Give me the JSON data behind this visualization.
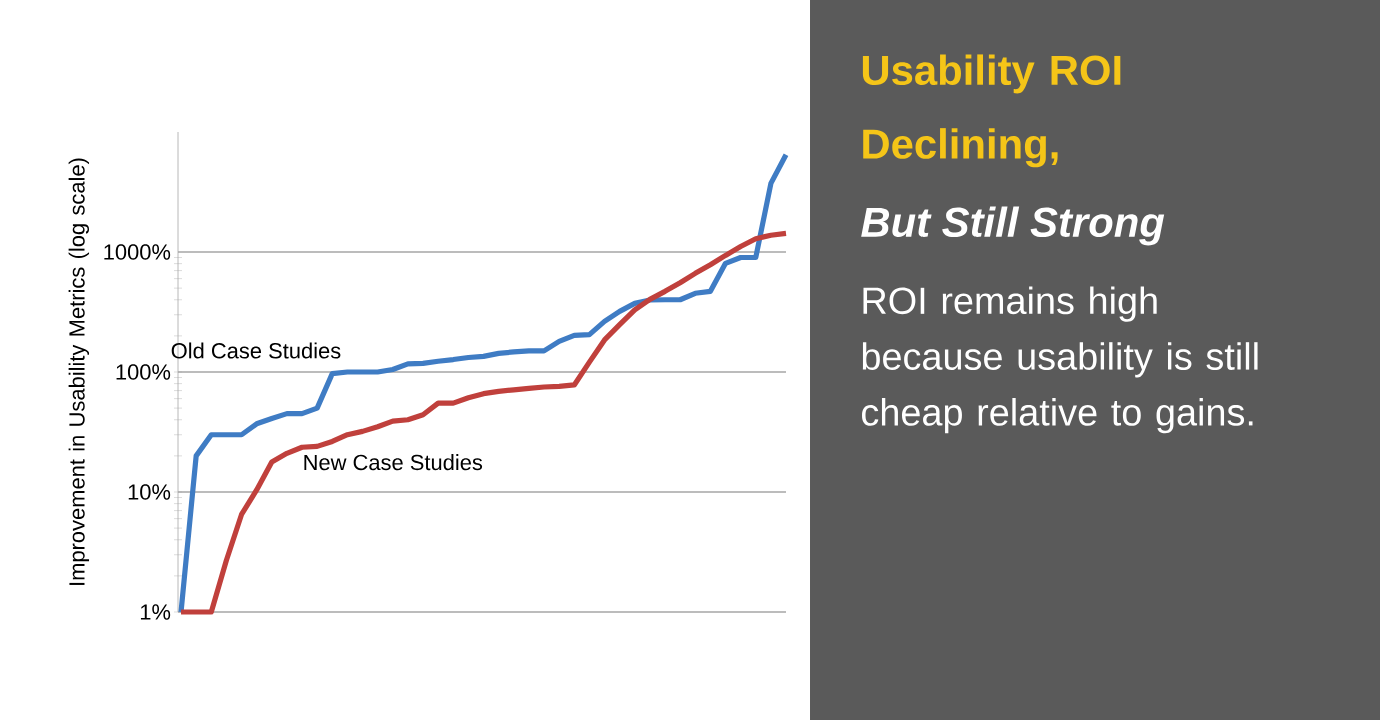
{
  "chart_data": {
    "type": "line",
    "title": "Usability ROI Declining,",
    "subtitle": "But Still Strong",
    "ylabel": "Improvement in Usability Metrics (log scale)",
    "annotations": [
      "ROI remains high because usability is still cheap relative to gains."
    ],
    "categories": [
      null,
      null,
      null,
      null,
      null,
      null,
      null,
      null,
      null,
      null,
      null,
      null,
      null,
      null,
      null,
      null,
      null,
      null,
      null,
      null,
      null,
      null,
      null,
      null,
      null,
      null,
      null,
      null,
      null,
      null,
      null,
      null,
      null,
      null,
      null,
      null,
      null,
      null,
      null,
      null,
      null
    ],
    "series": [
      {
        "name": "Old Case Studies",
        "color": "#3f7cc4",
        "values": [
          1,
          20,
          30,
          30,
          30,
          37,
          41,
          45,
          45,
          50,
          97,
          100,
          100,
          100,
          105,
          117,
          118,
          123,
          127,
          132,
          135,
          143,
          147,
          150,
          150,
          180,
          202,
          205,
          264,
          320,
          373,
          398,
          400,
          400,
          453,
          470,
          805,
          900,
          900,
          3730,
          6470
        ]
      },
      {
        "name": "New Case Studies",
        "color": "#c0403c",
        "values": [
          1,
          1,
          1,
          2.7,
          6.5,
          10.4,
          17.8,
          21,
          23.6,
          24,
          26.4,
          30,
          32,
          35,
          39,
          40,
          44,
          55,
          55,
          61,
          66,
          69,
          71,
          73,
          75,
          76,
          78,
          121,
          185,
          248,
          329,
          403,
          470,
          555,
          664,
          784,
          937,
          1110,
          1290,
          1380,
          1430
        ]
      }
    ],
    "log": "y",
    "ylim": [
      1,
      10000
    ],
    "yticks": [
      {
        "value": 1,
        "label": "1%"
      },
      {
        "value": 10,
        "label": "10%"
      },
      {
        "value": 100,
        "label": "100%"
      },
      {
        "value": 1000,
        "label": "1000%"
      }
    ],
    "grid": "y",
    "tick_labels": "y",
    "line_style": "solid"
  }
}
